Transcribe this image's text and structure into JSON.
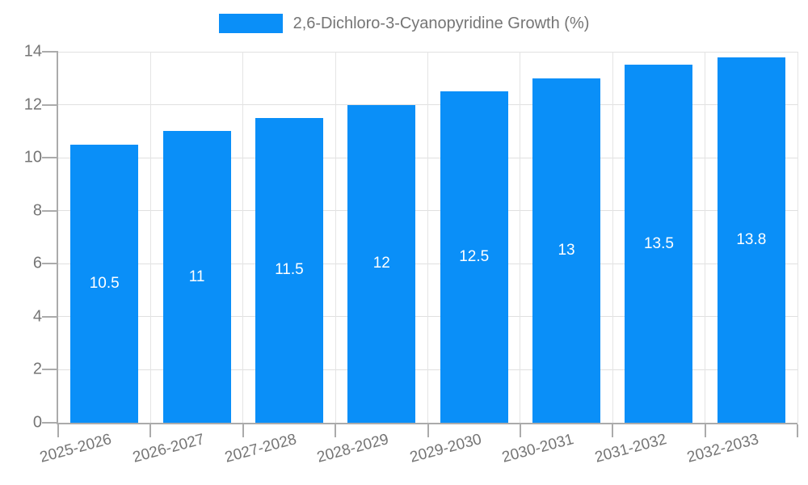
{
  "chart_data": {
    "type": "bar",
    "title": "2,6-Dichloro-3-Cyanopyridine Growth (%)",
    "categories": [
      "2025-2026",
      "2026-2027",
      "2027-2028",
      "2028-2029",
      "2029-2030",
      "2030-2031",
      "2031-2032",
      "2032-2033"
    ],
    "series": [
      {
        "name": "2,6-Dichloro-3-Cyanopyridine Growth (%)",
        "values": [
          10.5,
          11,
          11.5,
          12,
          12.5,
          13,
          13.5,
          13.8
        ]
      }
    ],
    "value_labels": [
      "10.5",
      "11",
      "11.5",
      "12",
      "12.5",
      "13",
      "13.5",
      "13.8"
    ],
    "xlabel": "",
    "ylabel": "",
    "ylim": [
      0,
      14
    ],
    "yticks": [
      0,
      2,
      4,
      6,
      8,
      10,
      12,
      14
    ],
    "grid": true,
    "legend_position": "top-center",
    "colors": {
      "bar": "#0a8ff8",
      "grid": "#e0e0e0",
      "axis": "#ababab",
      "axis_text": "#757575",
      "legend_text": "#757575",
      "value_label_text": "#ffffff",
      "background": "#ffffff"
    }
  }
}
